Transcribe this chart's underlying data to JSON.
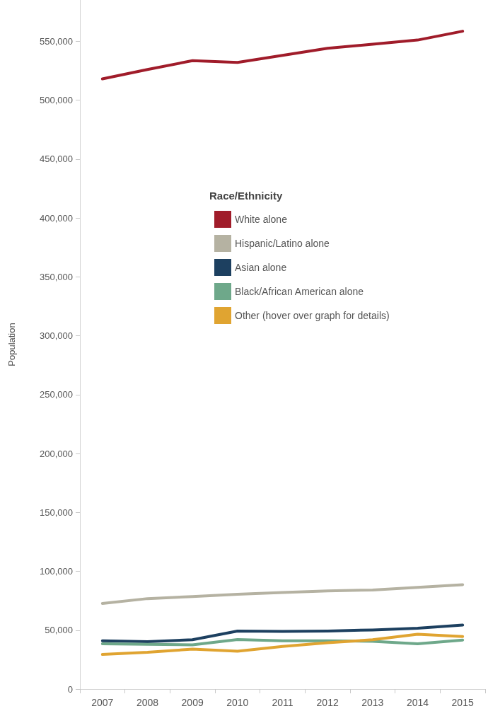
{
  "chart_data": {
    "type": "line",
    "ylabel": "Population",
    "legend_title": "Race/Ethnicity",
    "legend": "top",
    "marker": "none",
    "grid": false,
    "categories": [
      "2007",
      "2008",
      "2009",
      "2010",
      "2011",
      "2012",
      "2013",
      "2014",
      "2015"
    ],
    "ylim": [
      0,
      585000
    ],
    "yticks": [
      {
        "value": 0,
        "label": "0"
      },
      {
        "value": 50000,
        "label": "50,000"
      },
      {
        "value": 100000,
        "label": "100,000"
      },
      {
        "value": 150000,
        "label": "150,000"
      },
      {
        "value": 200000,
        "label": "200,000"
      },
      {
        "value": 250000,
        "label": "250,000"
      },
      {
        "value": 300000,
        "label": "300,000"
      },
      {
        "value": 350000,
        "label": "350,000"
      },
      {
        "value": 400000,
        "label": "400,000"
      },
      {
        "value": 450000,
        "label": "450,000"
      },
      {
        "value": 500000,
        "label": "500,000"
      },
      {
        "value": 550000,
        "label": "550,000"
      }
    ],
    "series": [
      {
        "name": "White alone",
        "color": "#a01c2a",
        "values": [
          518000,
          526000,
          533500,
          532000,
          538000,
          544000,
          547500,
          551000,
          558500
        ]
      },
      {
        "name": "Hispanic/Latino alone",
        "color": "#b5b2a2",
        "values": [
          72700,
          76800,
          78500,
          80500,
          82000,
          83400,
          84100,
          86300,
          88600
        ]
      },
      {
        "name": "Asian alone",
        "color": "#1d4060",
        "values": [
          41000,
          40200,
          41900,
          49300,
          49000,
          49300,
          50200,
          51600,
          54300
        ]
      },
      {
        "name": "Black/African American alone",
        "color": "#6ea88a",
        "values": [
          38400,
          38000,
          37500,
          42000,
          41000,
          41000,
          40500,
          38400,
          41600
        ]
      },
      {
        "name": "Other (hover over graph for details)",
        "color": "#e0a431",
        "values": [
          29400,
          31200,
          33900,
          32100,
          36200,
          39300,
          41900,
          46600,
          44600
        ]
      }
    ]
  }
}
